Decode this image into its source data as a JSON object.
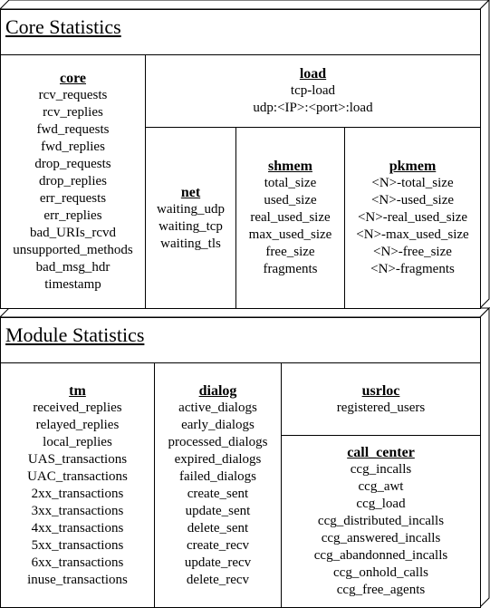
{
  "core_section": {
    "title": "Core Statistics",
    "core": {
      "title": "core",
      "items": [
        "rcv_requests",
        "rcv_replies",
        "fwd_requests",
        "fwd_replies",
        "drop_requests",
        "drop_replies",
        "err_requests",
        "err_replies",
        "bad_URIs_rcvd",
        "unsupported_methods",
        "bad_msg_hdr",
        "timestamp"
      ]
    },
    "load": {
      "title": "load",
      "items": [
        "tcp-load",
        "udp:<IP>:<port>:load"
      ]
    },
    "net": {
      "title": "net",
      "items": [
        "waiting_udp",
        "waiting_tcp",
        "waiting_tls"
      ]
    },
    "shmem": {
      "title": "shmem",
      "items": [
        "total_size",
        "used_size",
        "real_used_size",
        "max_used_size",
        "free_size",
        "fragments"
      ]
    },
    "pkmem": {
      "title": "pkmem",
      "items": [
        "<N>-total_size",
        "<N>-used_size",
        "<N>-real_used_size",
        "<N>-max_used_size",
        "<N>-free_size",
        "<N>-fragments"
      ]
    }
  },
  "module_section": {
    "title": "Module Statistics",
    "tm": {
      "title": "tm",
      "items": [
        "received_replies",
        "relayed_replies",
        "local_replies",
        "UAS_transactions",
        "UAC_transactions",
        "2xx_transactions",
        "3xx_transactions",
        "4xx_transactions",
        "5xx_transactions",
        "6xx_transactions",
        "inuse_transactions"
      ]
    },
    "dialog": {
      "title": "dialog",
      "items": [
        "active_dialogs",
        "early_dialogs",
        "processed_dialogs",
        "expired_dialogs",
        "failed_dialogs",
        "create_sent",
        "update_sent",
        "delete_sent",
        "create_recv",
        "update_recv",
        "delete_recv"
      ]
    },
    "usrloc": {
      "title": "usrloc",
      "items": [
        "registered_users"
      ]
    },
    "call_center": {
      "title": "call_center",
      "items": [
        "ccg_incalls",
        "ccg_awt",
        "ccg_load",
        "ccg_distributed_incalls",
        "ccg_answered_incalls",
        "ccg_abandonned_incalls",
        "ccg_onhold_calls",
        "ccg_free_agents"
      ]
    }
  }
}
